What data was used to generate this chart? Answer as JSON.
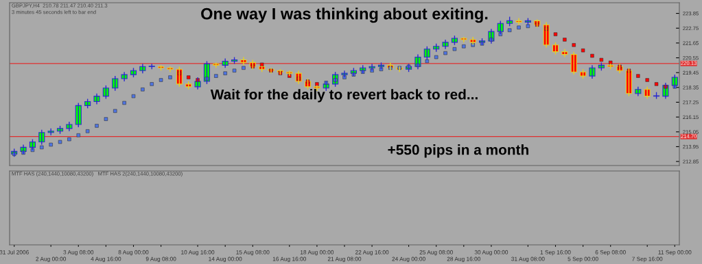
{
  "chart_data": [
    {
      "type": "candlestick",
      "title": "One way I was thinking about exiting.",
      "subtitle": "GBPJPY,H4  210.78 211.47 210.40 211.3",
      "annotations": [
        "Wait for the daily to revert back to red...",
        "+550 pips in a month",
        "3 minutes 45 seconds left to bar end"
      ],
      "colors": [
        "#00ff00",
        "#00ff00",
        "#00ff00",
        "#00ff00",
        "#00ff00",
        "#00ff00",
        "#00ff00",
        "#00ff00",
        "#00ff00",
        "#00ff00",
        "#00ff00",
        "#00ff00",
        "#00ff00",
        "#00ff00",
        "#00ff00",
        "#00ff00",
        "#ff0000",
        "#ff0000",
        "#ff0000",
        "#ff0000",
        "#00ff00",
        "#00ff00",
        "#ff0000",
        "#00ff00",
        "#00ff00",
        "#ff0000",
        "#ff0000",
        "#ff0000",
        "#ff0000",
        "#ff0000",
        "#ff0000",
        "#ff0000",
        "#ff0000",
        "#ff0000",
        "#00ff00",
        "#00ff00",
        "#00ff00",
        "#00ff00",
        "#00ff00",
        "#00ff00",
        "#00ff00",
        "#ff0000",
        "#ff0000",
        "#00ff00",
        "#00ff00",
        "#00ff00",
        "#00ff00",
        "#00ff00",
        "#00ff00",
        "#ff0000",
        "#ff0000",
        "#00ff00",
        "#00ff00",
        "#00ff00",
        "#00ff00",
        "#ff0000",
        "#00ff00",
        "#ff0000",
        "#ff0000",
        "#ff0000",
        "#ff0000",
        "#ff0000",
        "#ff0000",
        "#00ff00",
        "#00ff00",
        "#ff0000",
        "#ff0000",
        "#ff0000",
        "#00ff00",
        "#ff0000",
        "#00ff00",
        "#00ff00",
        "#00ff00"
      ],
      "ohlc": [
        [
          213.4,
          213.8,
          213.2,
          213.6
        ],
        [
          213.6,
          214.1,
          213.4,
          213.9
        ],
        [
          213.9,
          214.5,
          213.7,
          214.3
        ],
        [
          214.3,
          215.2,
          214.1,
          215.0
        ],
        [
          215.0,
          215.3,
          214.8,
          215.1
        ],
        [
          215.1,
          215.5,
          214.9,
          215.3
        ],
        [
          215.3,
          215.8,
          215.1,
          215.6
        ],
        [
          215.6,
          217.2,
          215.4,
          217.0
        ],
        [
          217.0,
          217.5,
          216.8,
          217.3
        ],
        [
          217.3,
          217.9,
          217.1,
          217.7
        ],
        [
          217.7,
          218.5,
          217.5,
          218.3
        ],
        [
          218.3,
          219.2,
          218.1,
          219.0
        ],
        [
          219.0,
          219.5,
          218.8,
          219.3
        ],
        [
          219.3,
          219.8,
          219.1,
          219.6
        ],
        [
          219.6,
          220.1,
          219.4,
          219.9
        ],
        [
          219.9,
          220.1,
          219.7,
          219.9
        ],
        [
          219.9,
          220.0,
          219.6,
          219.8
        ],
        [
          219.8,
          219.9,
          219.5,
          219.7
        ],
        [
          219.7,
          219.9,
          218.4,
          218.6
        ],
        [
          218.6,
          218.8,
          218.2,
          218.4
        ],
        [
          218.4,
          219.1,
          218.2,
          218.8
        ],
        [
          218.8,
          220.3,
          218.6,
          220.1
        ],
        [
          220.1,
          220.2,
          219.8,
          220.0
        ],
        [
          220.0,
          220.5,
          219.8,
          220.3
        ],
        [
          220.3,
          220.6,
          220.1,
          220.4
        ],
        [
          220.4,
          220.6,
          220.0,
          220.2
        ],
        [
          220.2,
          220.4,
          219.7,
          219.9
        ],
        [
          219.9,
          219.95,
          219.5,
          219.7
        ],
        [
          219.7,
          219.8,
          219.4,
          219.6
        ],
        [
          219.6,
          219.7,
          219.3,
          219.5
        ],
        [
          219.5,
          219.6,
          219.2,
          219.4
        ],
        [
          219.4,
          219.6,
          218.6,
          218.8
        ],
        [
          218.8,
          219.0,
          218.2,
          218.4
        ],
        [
          218.4,
          218.5,
          218.1,
          218.3
        ],
        [
          218.3,
          218.8,
          218.1,
          218.6
        ],
        [
          218.6,
          219.5,
          218.4,
          219.3
        ],
        [
          219.3,
          219.6,
          219.1,
          219.4
        ],
        [
          219.4,
          219.8,
          219.2,
          219.6
        ],
        [
          219.6,
          220.0,
          219.4,
          219.8
        ],
        [
          219.8,
          220.1,
          219.6,
          219.9
        ],
        [
          219.9,
          220.2,
          219.7,
          220.0
        ],
        [
          220.0,
          220.2,
          219.6,
          219.8
        ],
        [
          219.8,
          219.9,
          219.5,
          219.7
        ],
        [
          219.7,
          220.1,
          219.5,
          219.9
        ],
        [
          219.9,
          220.8,
          219.7,
          220.6
        ],
        [
          220.6,
          221.4,
          220.4,
          221.2
        ],
        [
          221.2,
          221.6,
          221.0,
          221.4
        ],
        [
          221.4,
          221.9,
          221.2,
          221.7
        ],
        [
          221.7,
          222.2,
          221.5,
          222.0
        ],
        [
          222.0,
          222.1,
          221.7,
          221.9
        ],
        [
          221.9,
          222.1,
          221.5,
          221.7
        ],
        [
          221.7,
          222.0,
          221.5,
          221.8
        ],
        [
          221.8,
          222.7,
          221.6,
          222.5
        ],
        [
          222.5,
          223.3,
          222.3,
          223.1
        ],
        [
          223.1,
          223.6,
          222.9,
          223.3
        ],
        [
          223.3,
          223.5,
          223.0,
          223.2
        ],
        [
          223.2,
          223.5,
          223.0,
          223.3
        ],
        [
          223.3,
          223.4,
          222.8,
          223.0
        ],
        [
          223.0,
          223.2,
          221.3,
          221.5
        ],
        [
          221.5,
          221.7,
          220.8,
          221.0
        ],
        [
          221.0,
          221.2,
          220.6,
          220.8
        ],
        [
          220.8,
          221.0,
          219.3,
          219.5
        ],
        [
          219.5,
          219.7,
          219.0,
          219.2
        ],
        [
          219.2,
          220.0,
          219.0,
          219.8
        ],
        [
          219.8,
          220.2,
          219.6,
          220.0
        ],
        [
          220.0,
          220.1,
          219.7,
          219.9
        ],
        [
          219.9,
          220.1,
          219.4,
          219.6
        ],
        [
          219.6,
          219.8,
          217.7,
          217.9
        ],
        [
          217.9,
          218.4,
          217.7,
          218.2
        ],
        [
          218.2,
          218.4,
          217.5,
          217.7
        ],
        [
          217.7,
          218.0,
          217.5,
          217.7
        ],
        [
          217.7,
          218.7,
          217.5,
          218.5
        ],
        [
          218.5,
          219.3,
          218.3,
          219.1
        ]
      ],
      "series": [
        {
          "type": "scatter",
          "marker": "square",
          "values": [
            213.4,
            213.5,
            213.7,
            213.9,
            214.1,
            214.3,
            214.5,
            214.8,
            215.1,
            215.5,
            216.0,
            216.6,
            217.2,
            217.7,
            218.2,
            218.6,
            218.9,
            219.1,
            219.4,
            219.1,
            218.9,
            219.0,
            219.2,
            219.4,
            219.6,
            219.8,
            219.9,
            220.05,
            219.6,
            219.4,
            219.2,
            219.0,
            218.8,
            218.6,
            218.7,
            218.9,
            219.1,
            219.3,
            219.5,
            219.6,
            219.7,
            219.8,
            219.8,
            219.9,
            220.0,
            220.3,
            220.6,
            220.9,
            221.2,
            221.4,
            221.5,
            221.6,
            221.9,
            222.3,
            222.6,
            222.8,
            222.9,
            223.0,
            222.7,
            222.3,
            221.9,
            221.5,
            221.1,
            220.7,
            220.4,
            220.2,
            219.9,
            219.6,
            219.2,
            218.9,
            218.6,
            218.4,
            218.4
          ],
          "colors": [
            "#4f74e0",
            "#4f74e0",
            "#4f74e0",
            "#4f74e0",
            "#4f74e0",
            "#4f74e0",
            "#4f74e0",
            "#4f74e0",
            "#4f74e0",
            "#4f74e0",
            "#4f74e0",
            "#4f74e0",
            "#4f74e0",
            "#4f74e0",
            "#4f74e0",
            "#4f74e0",
            "#4f74e0",
            "#4f74e0",
            "#ff0000",
            "#ff0000",
            "#ff0000",
            "#4f74e0",
            "#4f74e0",
            "#4f74e0",
            "#4f74e0",
            "#4f74e0",
            "#ff0000",
            "#ff0000",
            "#ff0000",
            "#ff0000",
            "#ff0000",
            "#ff0000",
            "#ff0000",
            "#ff0000",
            "#4f74e0",
            "#4f74e0",
            "#4f74e0",
            "#4f74e0",
            "#4f74e0",
            "#4f74e0",
            "#4f74e0",
            "#4f74e0",
            "#4f74e0",
            "#4f74e0",
            "#4f74e0",
            "#4f74e0",
            "#4f74e0",
            "#4f74e0",
            "#4f74e0",
            "#4f74e0",
            "#4f74e0",
            "#4f74e0",
            "#4f74e0",
            "#4f74e0",
            "#4f74e0",
            "#4f74e0",
            "#4f74e0",
            "#ff0000",
            "#ff0000",
            "#ff0000",
            "#ff0000",
            "#ff0000",
            "#ff0000",
            "#ff0000",
            "#ff0000",
            "#ff0000",
            "#ff0000",
            "#ff0000",
            "#ff0000",
            "#ff0000",
            "#ff0000",
            "#ff0000",
            "#4f74e0"
          ]
        }
      ],
      "ylim": [
        212.55,
        224.64
      ],
      "yticks": [
        212.85,
        213.95,
        215.05,
        216.15,
        217.25,
        218.35,
        219.45,
        220.55,
        221.65,
        222.75,
        223.85
      ],
      "ref_lines": [
        {
          "axis": "y",
          "value": 220.13,
          "label": "220.13",
          "color": "#e03030"
        },
        {
          "axis": "y",
          "value": 214.7,
          "label": "214.70",
          "color": "#e03030"
        }
      ],
      "tick_labels": "y",
      "grid": false
    },
    {
      "type": "other",
      "annotations": [
        "MTF HAS (240,1440,10080,43200)   MTF HAS 2(240,1440,10080,43200)"
      ],
      "categories": [
        "31 Jul 2006",
        null,
        null,
        null,
        "2 Aug 00:00",
        null,
        null,
        "3 Aug 08:00",
        null,
        null,
        "4 Aug 16:00",
        null,
        null,
        "8 Aug 00:00",
        null,
        null,
        "9 Aug 08:00",
        null,
        null,
        null,
        "10 Aug 16:00",
        null,
        null,
        "14 Aug 00:00",
        null,
        null,
        "15 Aug 08:00",
        null,
        null,
        null,
        "16 Aug 16:00",
        null,
        null,
        "18 Aug 00:00",
        null,
        null,
        "21 Aug 08:00",
        null,
        null,
        "22 Aug 16:00",
        null,
        null,
        null,
        "24 Aug 00:00",
        null,
        null,
        "25 Aug 08:00",
        null,
        null,
        "28 Aug 16:00",
        null,
        null,
        "30 Aug 00:00",
        null,
        null,
        null,
        "31 Aug 08:00",
        null,
        null,
        "1 Sep 16:00",
        null,
        null,
        "5 Sep 00:00",
        null,
        null,
        "6 Sep 08:00",
        null,
        null,
        null,
        "7 Sep 16:00",
        null,
        null,
        "11 Sep 00:00"
      ]
    }
  ]
}
